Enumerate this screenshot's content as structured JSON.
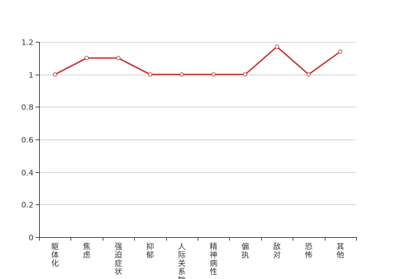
{
  "chart_data": {
    "type": "line",
    "title": "",
    "xlabel": "",
    "ylabel": "",
    "categories": [
      "躯体化",
      "焦虑",
      "强迫症状",
      "抑郁",
      "人际关系敏感",
      "精神病性",
      "偏执",
      "敌对",
      "恐怖",
      "其他"
    ],
    "series": [
      {
        "values": [
          1.0,
          1.1,
          1.1,
          1.0,
          1.0,
          1.0,
          1.0,
          1.17,
          1.0,
          1.14
        ],
        "color": "#c23531"
      }
    ],
    "ylim": [
      0,
      1.2
    ],
    "yticks": [
      0,
      0.2,
      0.4,
      0.6,
      0.8,
      1,
      1.2
    ],
    "ytick_labels": [
      "0",
      "0.2",
      "0.4",
      "0.6",
      "0.8",
      "1",
      "1.2"
    ],
    "grid": true,
    "legend": "none"
  }
}
